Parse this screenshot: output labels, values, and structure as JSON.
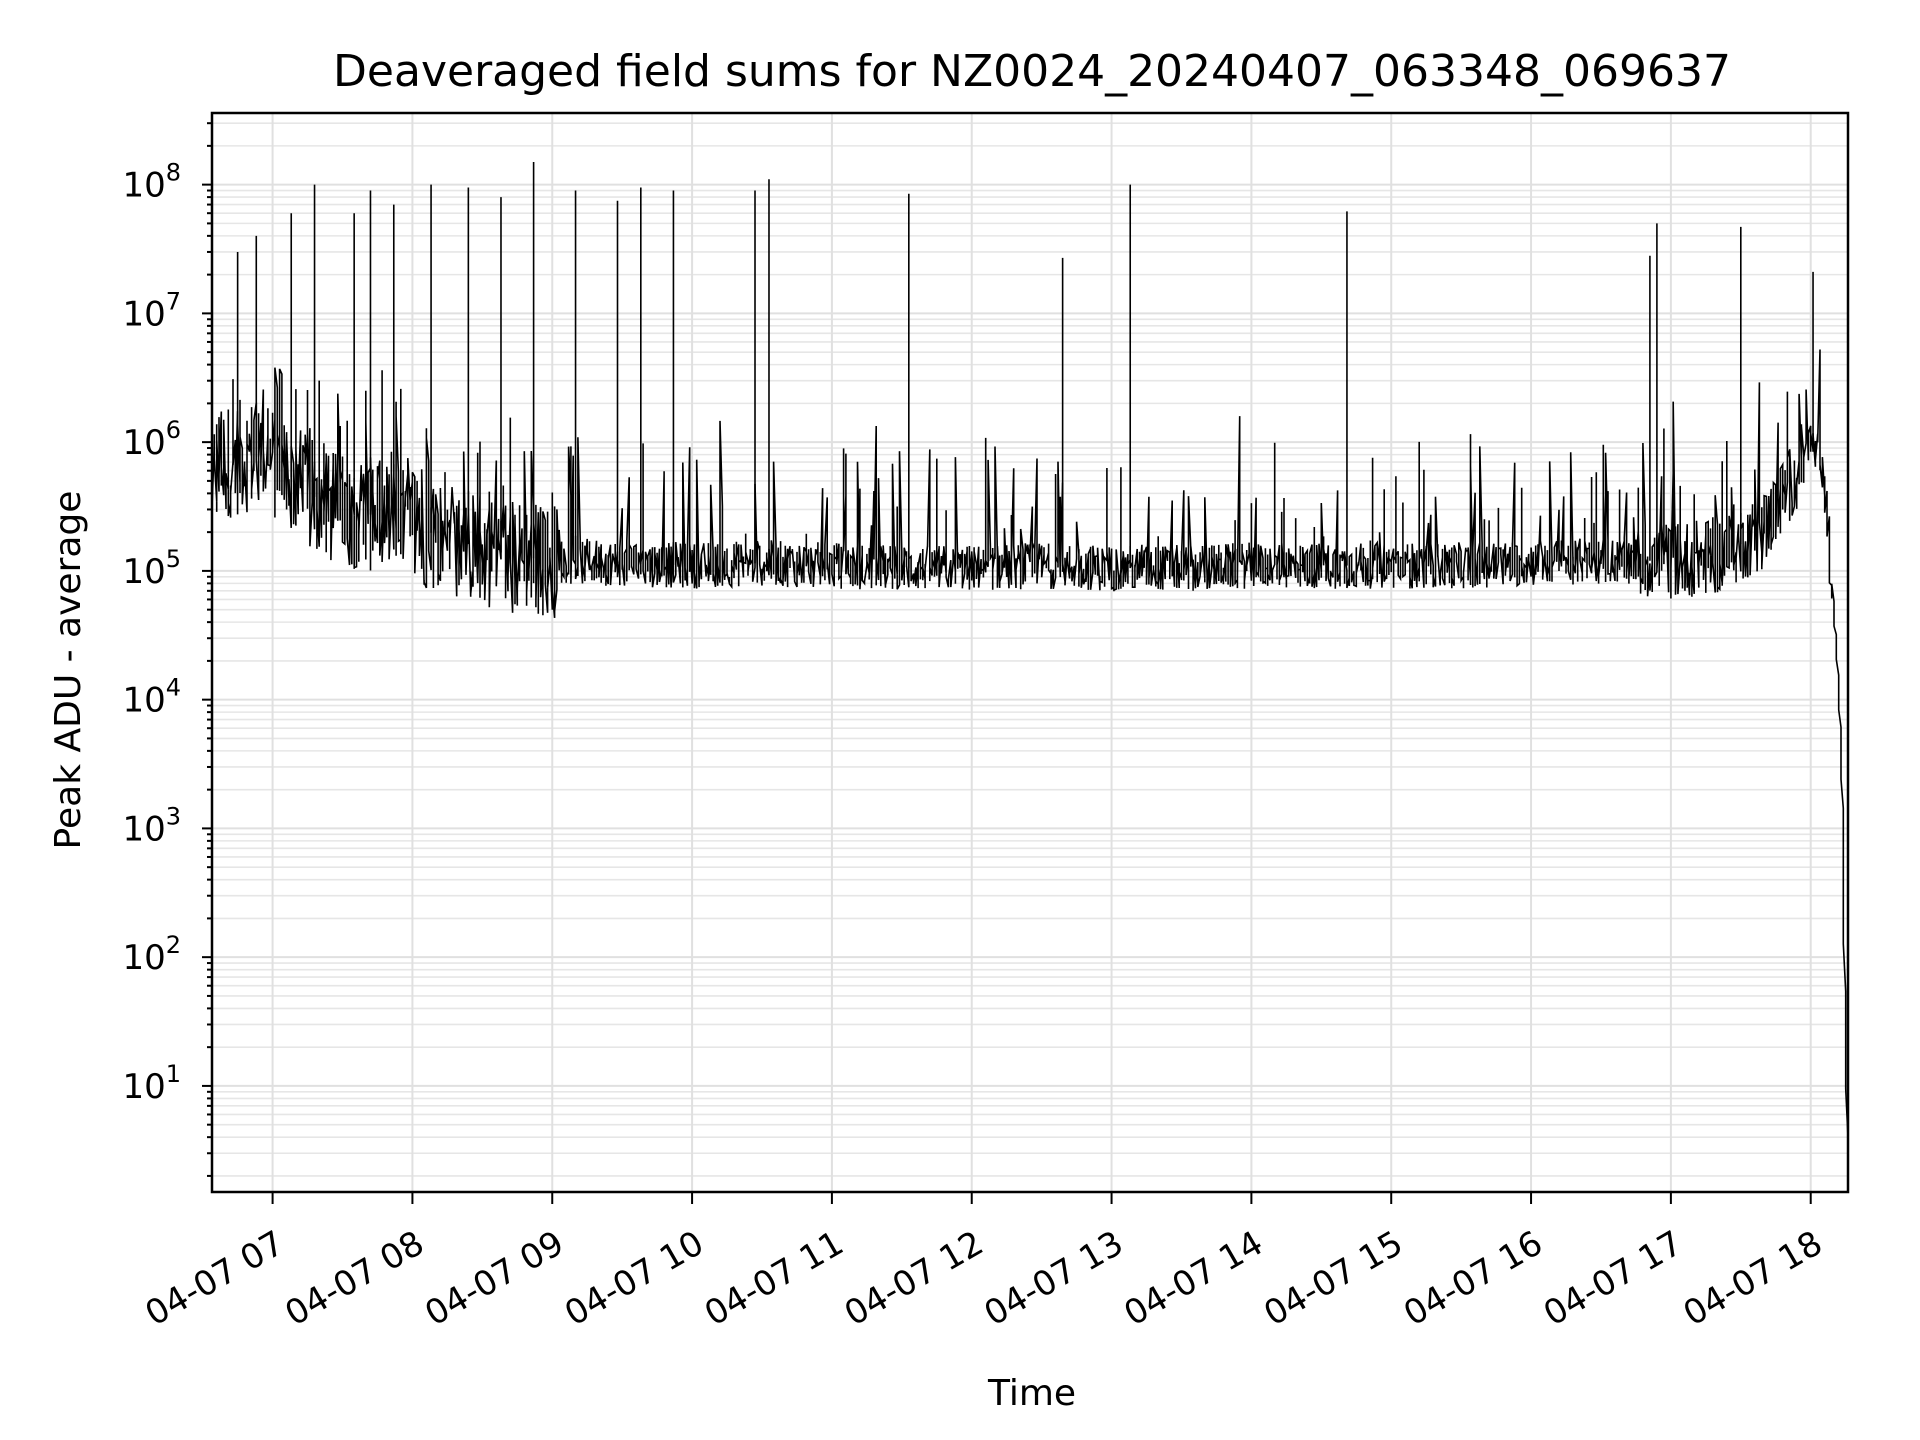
{
  "chart_data": {
    "type": "line",
    "title": "Deaveraged field sums for NZ0024_20240407_063348_069637",
    "xlabel": "Time",
    "ylabel": "Peak ADU - average",
    "yscale": "log",
    "ylim": [
      1.5,
      360000000
    ],
    "xlim": [
      "2024-04-07 06:34",
      "2024-04-07 18:16"
    ],
    "grid": true,
    "x_ticks": [
      "04-07 07",
      "04-07 08",
      "04-07 09",
      "04-07 10",
      "04-07 11",
      "04-07 12",
      "04-07 13",
      "04-07 14",
      "04-07 15",
      "04-07 16",
      "04-07 17",
      "04-07 18"
    ],
    "y_ticks": [
      {
        "base": "10",
        "exp": "1",
        "value": 10
      },
      {
        "base": "10",
        "exp": "2",
        "value": 100
      },
      {
        "base": "10",
        "exp": "3",
        "value": 1000
      },
      {
        "base": "10",
        "exp": "4",
        "value": 10000
      },
      {
        "base": "10",
        "exp": "5",
        "value": 100000
      },
      {
        "base": "10",
        "exp": "6",
        "value": 1000000
      },
      {
        "base": "10",
        "exp": "7",
        "value": 10000000
      },
      {
        "base": "10",
        "exp": "8",
        "value": 100000000
      }
    ],
    "line_color": "#000000",
    "series": [
      {
        "x": [
          "2024-04-07 06:34",
          "2024-04-07 06:40",
          "2024-04-07 06:50",
          "2024-04-07 07:00",
          "2024-04-07 07:10",
          "2024-04-07 07:20",
          "2024-04-07 07:30",
          "2024-04-07 07:40",
          "2024-04-07 07:50",
          "2024-04-07 08:00",
          "2024-04-07 08:15",
          "2024-04-07 08:30",
          "2024-04-07 08:45",
          "2024-04-07 09:00",
          "2024-04-07 09:30",
          "2024-04-07 10:00",
          "2024-04-07 10:30",
          "2024-04-07 11:00",
          "2024-04-07 11:30",
          "2024-04-07 12:00",
          "2024-04-07 12:30",
          "2024-04-07 13:00",
          "2024-04-07 13:30",
          "2024-04-07 14:00",
          "2024-04-07 14:30",
          "2024-04-07 15:00",
          "2024-04-07 15:30",
          "2024-04-07 16:00",
          "2024-04-07 16:30",
          "2024-04-07 17:00",
          "2024-04-07 17:20",
          "2024-04-07 17:40",
          "2024-04-07 17:55",
          "2024-04-07 18:00",
          "2024-04-07 18:05",
          "2024-04-07 18:08",
          "2024-04-07 18:10",
          "2024-04-07 18:12",
          "2024-04-07 18:14",
          "2024-04-07 18:15",
          "2024-04-07 18:16"
        ],
        "y": [
          600000,
          700000,
          800000,
          700000,
          500000,
          350000,
          300000,
          280000,
          250000,
          220000,
          180000,
          150000,
          130000,
          120000,
          115000,
          110000,
          115000,
          110000,
          105000,
          105000,
          110000,
          105000,
          105000,
          110000,
          110000,
          110000,
          110000,
          115000,
          120000,
          120000,
          130000,
          200000,
          600000,
          1000000,
          700000,
          200000,
          60000,
          20000,
          2000,
          100,
          4
        ]
      }
    ],
    "spikes": [
      {
        "x": "2024-04-07 06:45",
        "y": 30000000
      },
      {
        "x": "2024-04-07 06:53",
        "y": 40000000
      },
      {
        "x": "2024-04-07 07:08",
        "y": 60000000
      },
      {
        "x": "2024-04-07 07:18",
        "y": 100000000
      },
      {
        "x": "2024-04-07 07:35",
        "y": 60000000
      },
      {
        "x": "2024-04-07 07:42",
        "y": 90000000
      },
      {
        "x": "2024-04-07 07:52",
        "y": 70000000
      },
      {
        "x": "2024-04-07 08:08",
        "y": 100000000
      },
      {
        "x": "2024-04-07 08:24",
        "y": 95000000
      },
      {
        "x": "2024-04-07 08:38",
        "y": 80000000
      },
      {
        "x": "2024-04-07 08:52",
        "y": 150000000
      },
      {
        "x": "2024-04-07 09:10",
        "y": 90000000
      },
      {
        "x": "2024-04-07 09:28",
        "y": 75000000
      },
      {
        "x": "2024-04-07 09:38",
        "y": 95000000
      },
      {
        "x": "2024-04-07 09:52",
        "y": 90000000
      },
      {
        "x": "2024-04-07 10:27",
        "y": 90000000
      },
      {
        "x": "2024-04-07 10:33",
        "y": 110000000
      },
      {
        "x": "2024-04-07 11:33",
        "y": 85000000
      },
      {
        "x": "2024-04-07 12:39",
        "y": 27000000
      },
      {
        "x": "2024-04-07 13:08",
        "y": 100000000
      },
      {
        "x": "2024-04-07 14:41",
        "y": 62000000
      },
      {
        "x": "2024-04-07 16:51",
        "y": 28000000
      },
      {
        "x": "2024-04-07 16:54",
        "y": 50000000
      },
      {
        "x": "2024-04-07 17:30",
        "y": 47000000
      },
      {
        "x": "2024-04-07 18:01",
        "y": 21000000
      }
    ]
  }
}
